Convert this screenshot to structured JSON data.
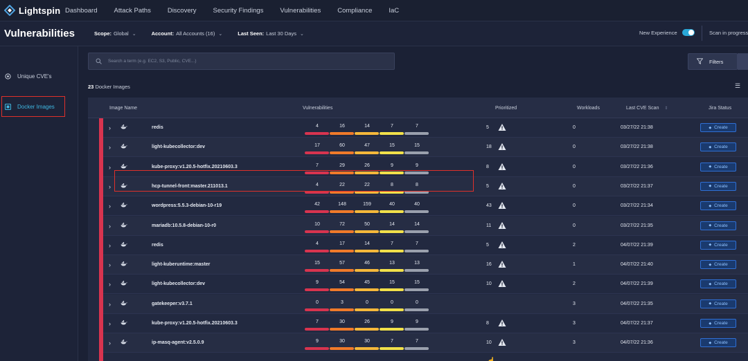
{
  "app": {
    "brand": "Lightspin",
    "nav": [
      "Dashboard",
      "Attack Paths",
      "Discovery",
      "Security Findings",
      "Vulnerabilities",
      "Compliance",
      "IaC"
    ]
  },
  "page": {
    "title": "Vulnerabilities",
    "filters": [
      {
        "label": "Scope:",
        "value": "Global"
      },
      {
        "label": "Account:",
        "value": "All Accounts (16)"
      },
      {
        "label": "Last Seen:",
        "value": "Last 30 Days"
      }
    ],
    "new_experience_label": "New Experience",
    "scan_status": "Scan in progress"
  },
  "sidebar": {
    "items": [
      {
        "label": "Unique CVE's",
        "icon": "unique-cve-icon"
      },
      {
        "label": "Docker Images",
        "icon": "docker-images-icon",
        "active": true
      }
    ]
  },
  "search": {
    "placeholder": "Search a term (e.g. EC2, S3, Public, CVE...)"
  },
  "filters_button": "Filters",
  "count_label": {
    "number": "23",
    "text": "Docker Images"
  },
  "table": {
    "headers": {
      "image_name": "Image Name",
      "vulnerabilities": "Vulnerabilities",
      "prioritized": "Prioritized",
      "workloads": "Workloads",
      "last_cve_scan": "Last CVE Scan",
      "jira_status": "Jira Status"
    },
    "create_label": "Create",
    "rows": [
      {
        "name": "redis",
        "vulns": [
          "4",
          "16",
          "14",
          "7",
          "7"
        ],
        "prioritized": "5",
        "workloads": "0",
        "last_scan": "03/27/22 21:38"
      },
      {
        "name": "light-kubecollector:dev",
        "vulns": [
          "17",
          "60",
          "47",
          "15",
          "15"
        ],
        "prioritized": "18",
        "workloads": "0",
        "last_scan": "03/27/22 21:38"
      },
      {
        "name": "kube-proxy:v1.20.5-hotfix.20210603.3",
        "vulns": [
          "7",
          "29",
          "26",
          "9",
          "9"
        ],
        "prioritized": "8",
        "workloads": "0",
        "last_scan": "03/27/22 21:36"
      },
      {
        "name": "hcp-tunnel-front:master.211013.1",
        "vulns": [
          "4",
          "22",
          "22",
          "8",
          "8"
        ],
        "prioritized": "5",
        "workloads": "0",
        "last_scan": "03/27/22 21:37"
      },
      {
        "name": "wordpress:5.5.3-debian-10-r19",
        "vulns": [
          "42",
          "148",
          "159",
          "40",
          "40"
        ],
        "prioritized": "43",
        "workloads": "0",
        "last_scan": "03/27/22 21:34"
      },
      {
        "name": "mariadb:10.5.8-debian-10-r0",
        "vulns": [
          "10",
          "72",
          "50",
          "14",
          "14"
        ],
        "prioritized": "11",
        "workloads": "0",
        "last_scan": "03/27/22 21:35"
      },
      {
        "name": "redis",
        "vulns": [
          "4",
          "17",
          "14",
          "7",
          "7"
        ],
        "prioritized": "5",
        "workloads": "2",
        "last_scan": "04/07/22 21:39"
      },
      {
        "name": "light-kuberuntime:master",
        "vulns": [
          "15",
          "57",
          "46",
          "13",
          "13"
        ],
        "prioritized": "16",
        "workloads": "1",
        "last_scan": "04/07/22 21:40"
      },
      {
        "name": "light-kubecollector:dev",
        "vulns": [
          "9",
          "54",
          "45",
          "15",
          "15"
        ],
        "prioritized": "10",
        "workloads": "2",
        "last_scan": "04/07/22 21:39"
      },
      {
        "name": "gatekeeper:v3.7.1",
        "vulns": [
          "0",
          "3",
          "0",
          "0",
          "0"
        ],
        "prioritized": "",
        "workloads": "3",
        "last_scan": "04/07/22 21:35"
      },
      {
        "name": "kube-proxy:v1.20.5-hotfix.20210603.3",
        "vulns": [
          "7",
          "30",
          "26",
          "9",
          "9"
        ],
        "prioritized": "8",
        "workloads": "3",
        "last_scan": "04/07/22 21:37"
      },
      {
        "name": "ip-masq-agent:v2.5.0.9",
        "vulns": [
          "9",
          "30",
          "30",
          "7",
          "7"
        ],
        "prioritized": "10",
        "workloads": "3",
        "last_scan": "04/07/22 21:36"
      }
    ]
  },
  "colors": {
    "critical": "#d8344f",
    "high": "#f07a2a",
    "medium": "#f5b83a",
    "low": "#f1e04a",
    "info": "#9aa0ad",
    "accent": "#2aa8d8",
    "highlight": "#e0302a"
  }
}
